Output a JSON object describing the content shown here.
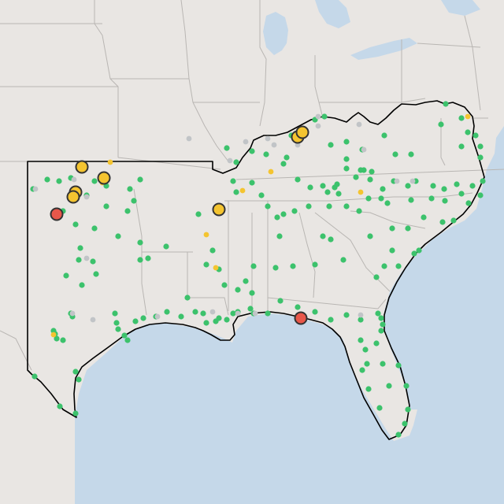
{
  "map": {
    "colors": {
      "land": "#e9e6e3",
      "water": "#c5d8e9",
      "state_border": "#b9b6b3",
      "region_outline": "#000000",
      "marker_green": "#3cc26c",
      "marker_grey": "#c1c4c7",
      "marker_yellow": "#f4c430",
      "marker_red": "#e8574a",
      "marker_outline": "#333333"
    },
    "marker_categories": [
      {
        "id": "green",
        "marker": "small-dot"
      },
      {
        "id": "grey",
        "marker": "small-dot"
      },
      {
        "id": "yellow",
        "marker": "small-dot"
      },
      {
        "id": "yellow",
        "marker": "large-circle"
      },
      {
        "id": "red",
        "marker": "large-circle"
      }
    ]
  }
}
